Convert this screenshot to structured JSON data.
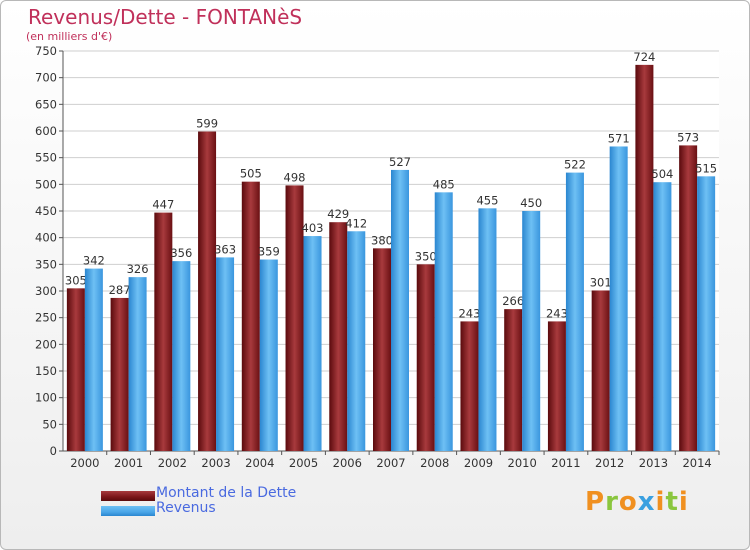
{
  "chart_data": {
    "type": "bar",
    "title": "Revenus/Dette - FONTANèS",
    "subtitle": "(en milliers d'€)",
    "categories": [
      "2000",
      "2001",
      "2002",
      "2003",
      "2004",
      "2005",
      "2006",
      "2007",
      "2008",
      "2009",
      "2010",
      "2011",
      "2012",
      "2013",
      "2014"
    ],
    "series": [
      {
        "name": "Montant de la Dette",
        "color": "#7a1518",
        "values": [
          305,
          287,
          447,
          599,
          505,
          498,
          429,
          380,
          350,
          243,
          266,
          243,
          301,
          724,
          573
        ]
      },
      {
        "name": "Revenus",
        "color": "#4aa6e8",
        "values": [
          342,
          326,
          356,
          363,
          359,
          403,
          412,
          527,
          485,
          455,
          450,
          522,
          571,
          504,
          515
        ]
      }
    ],
    "xlabel": "",
    "ylabel": "",
    "ylim": [
      0,
      750
    ],
    "yticks": [
      0,
      50,
      100,
      150,
      200,
      250,
      300,
      350,
      400,
      450,
      500,
      550,
      600,
      650,
      700,
      750
    ],
    "grid": true,
    "legend_position": "bottom-left"
  },
  "brand": {
    "text": "Proxiti",
    "colors": [
      "#f09020",
      "#8ac63e",
      "#f09020",
      "#3aa0e0",
      "#f09020",
      "#8ac63e",
      "#f09020"
    ]
  }
}
